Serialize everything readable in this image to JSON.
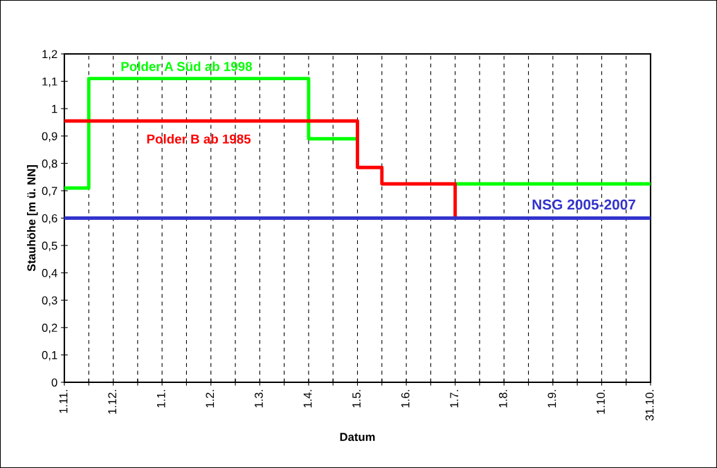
{
  "chart_data": {
    "type": "step",
    "xlabel": "Datum",
    "ylabel": "Stauhöhe [m ü. NN]",
    "categories": [
      "1.11.",
      null,
      "1.12.",
      null,
      "1.1.",
      null,
      "1.2.",
      null,
      "1.3.",
      null,
      "1.4.",
      null,
      "1.5.",
      null,
      "1.6.",
      null,
      "1.7.",
      null,
      "1.8.",
      null,
      "1.9.",
      null,
      "1.10.",
      null,
      "31.10."
    ],
    "series": [
      {
        "name": "Polder A Süd ab 1998",
        "color": "#00ff00",
        "values": [
          0.71,
          1.11,
          1.11,
          1.11,
          1.11,
          1.11,
          1.11,
          1.11,
          1.11,
          1.11,
          0.89,
          0.89,
          null,
          null,
          null,
          null,
          0.725,
          0.725,
          0.725,
          0.725,
          0.725,
          0.725,
          0.725,
          0.725,
          0.725
        ]
      },
      {
        "name": "Polder B ab 1985",
        "color": "#ff0000",
        "values": [
          0.955,
          0.955,
          0.955,
          0.955,
          0.955,
          0.955,
          0.955,
          0.955,
          0.955,
          0.955,
          0.955,
          0.955,
          0.785,
          0.725,
          0.725,
          0.725,
          0.6,
          null,
          null,
          null,
          null,
          null,
          null,
          null,
          null
        ]
      },
      {
        "name": "NSG 2005-2007",
        "color": "#3333cc",
        "values": [
          0.6,
          0.6,
          0.6,
          0.6,
          0.6,
          0.6,
          0.6,
          0.6,
          0.6,
          0.6,
          0.6,
          0.6,
          0.6,
          0.6,
          0.6,
          0.6,
          0.6,
          0.6,
          0.6,
          0.6,
          0.6,
          0.6,
          0.6,
          0.6,
          0.6
        ]
      }
    ],
    "ylim": [
      0,
      1.2
    ],
    "yticks": [
      {
        "value": 0,
        "label": "0"
      },
      {
        "value": 0.1,
        "label": "0,1"
      },
      {
        "value": 0.2,
        "label": "0,2"
      },
      {
        "value": 0.3,
        "label": "0,3"
      },
      {
        "value": 0.4,
        "label": "0,4"
      },
      {
        "value": 0.5,
        "label": "0,5"
      },
      {
        "value": 0.6,
        "label": "0,6"
      },
      {
        "value": 0.7,
        "label": "0,7"
      },
      {
        "value": 0.8,
        "label": "0,8"
      },
      {
        "value": 0.9,
        "label": "0,9"
      },
      {
        "value": 1,
        "label": "1"
      },
      {
        "value": 1.1,
        "label": "1,1"
      },
      {
        "value": 1.2,
        "label": "1,2"
      }
    ],
    "grid": "x",
    "line_style": "solid",
    "marker": "none"
  }
}
